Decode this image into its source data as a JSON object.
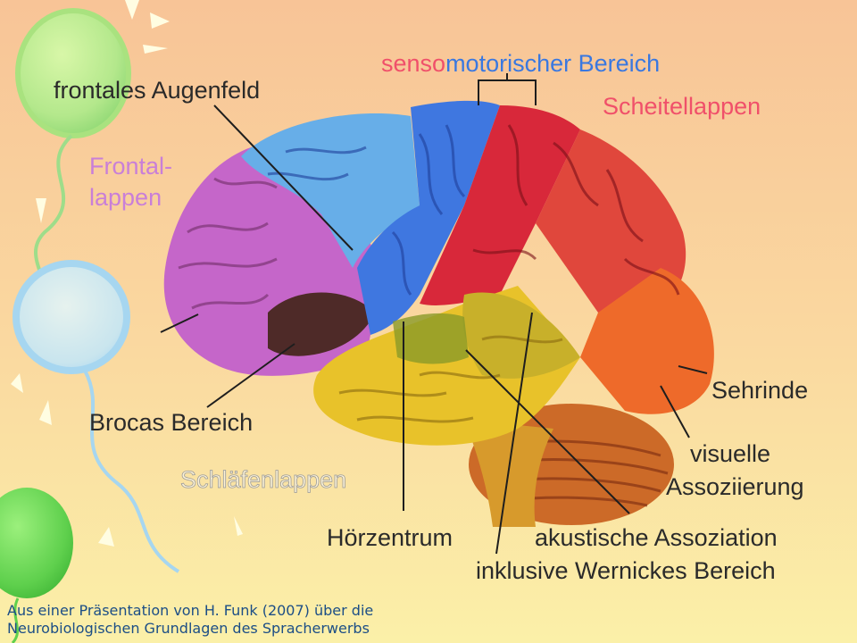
{
  "labels": {
    "sensomotor_part1": "senso",
    "sensomotor_part2": "motorischer Bereich",
    "frontal_eye_field": "frontales Augenfeld",
    "parietal_lobe": "Scheitellappen",
    "frontal_lobe_line1": "Frontal-",
    "frontal_lobe_line2": "lappen",
    "broca": "Brocas Bereich",
    "visual_cortex": "Sehrinde",
    "visual_association_line1": "visuelle",
    "visual_association_line2": "Assoziierung",
    "temporal_lobe": "Schläfenlappen",
    "auditory_center": "Hörzentrum",
    "acoustic_association": "akustische Assoziation",
    "wernicke": "inklusive Wernickes Bereich"
  },
  "caption": {
    "line1": "Aus einer Präsentation von H. Funk (2007) über die",
    "line2": "Neurobiologischen Grundlagen des Spracherwerbs"
  },
  "colors": {
    "background_top": "#f8c497",
    "background_bottom": "#fbf0a8",
    "frontal_lobe": "#c566c9",
    "motor_cortex": "#3f77e0",
    "sensory_cortex": "#d8283a",
    "parietal": "#e0473c",
    "occipital": "#ee6a2a",
    "temporal": "#e8c22a",
    "cerebellum": "#cc6a28",
    "brainstem": "#d79a2c",
    "balloon_green": "#5fd04d",
    "balloon_blue": "#a9d8f2"
  }
}
